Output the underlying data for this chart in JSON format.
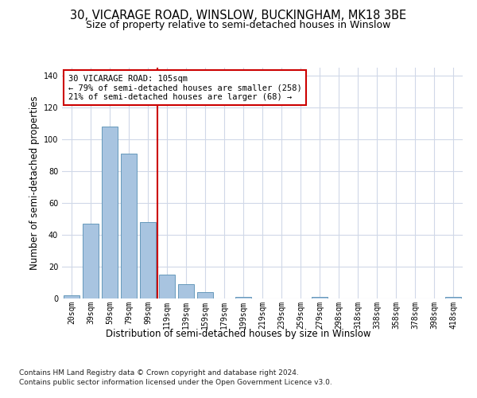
{
  "title": "30, VICARAGE ROAD, WINSLOW, BUCKINGHAM, MK18 3BE",
  "subtitle": "Size of property relative to semi-detached houses in Winslow",
  "xlabel": "Distribution of semi-detached houses by size in Winslow",
  "ylabel": "Number of semi-detached properties",
  "categories": [
    "20sqm",
    "39sqm",
    "59sqm",
    "79sqm",
    "99sqm",
    "119sqm",
    "139sqm",
    "159sqm",
    "179sqm",
    "199sqm",
    "219sqm",
    "239sqm",
    "259sqm",
    "279sqm",
    "298sqm",
    "318sqm",
    "338sqm",
    "358sqm",
    "378sqm",
    "398sqm",
    "418sqm"
  ],
  "values": [
    2,
    47,
    108,
    91,
    48,
    15,
    9,
    4,
    0,
    1,
    0,
    0,
    0,
    1,
    0,
    0,
    0,
    0,
    0,
    0,
    1
  ],
  "bar_color": "#a8c4e0",
  "bar_edge_color": "#6699bb",
  "vline_x": 4.5,
  "vline_color": "#cc0000",
  "annotation_text": "30 VICARAGE ROAD: 105sqm\n← 79% of semi-detached houses are smaller (258)\n21% of semi-detached houses are larger (68) →",
  "annotation_box_color": "#ffffff",
  "annotation_box_edge": "#cc0000",
  "ylim": [
    0,
    145
  ],
  "yticks": [
    0,
    20,
    40,
    60,
    80,
    100,
    120,
    140
  ],
  "footer_line1": "Contains HM Land Registry data © Crown copyright and database right 2024.",
  "footer_line2": "Contains public sector information licensed under the Open Government Licence v3.0.",
  "bg_color": "#ffffff",
  "grid_color": "#d0d8e8",
  "title_fontsize": 10.5,
  "subtitle_fontsize": 9,
  "axis_label_fontsize": 8.5,
  "tick_fontsize": 7,
  "annot_fontsize": 7.5,
  "footer_fontsize": 6.5
}
